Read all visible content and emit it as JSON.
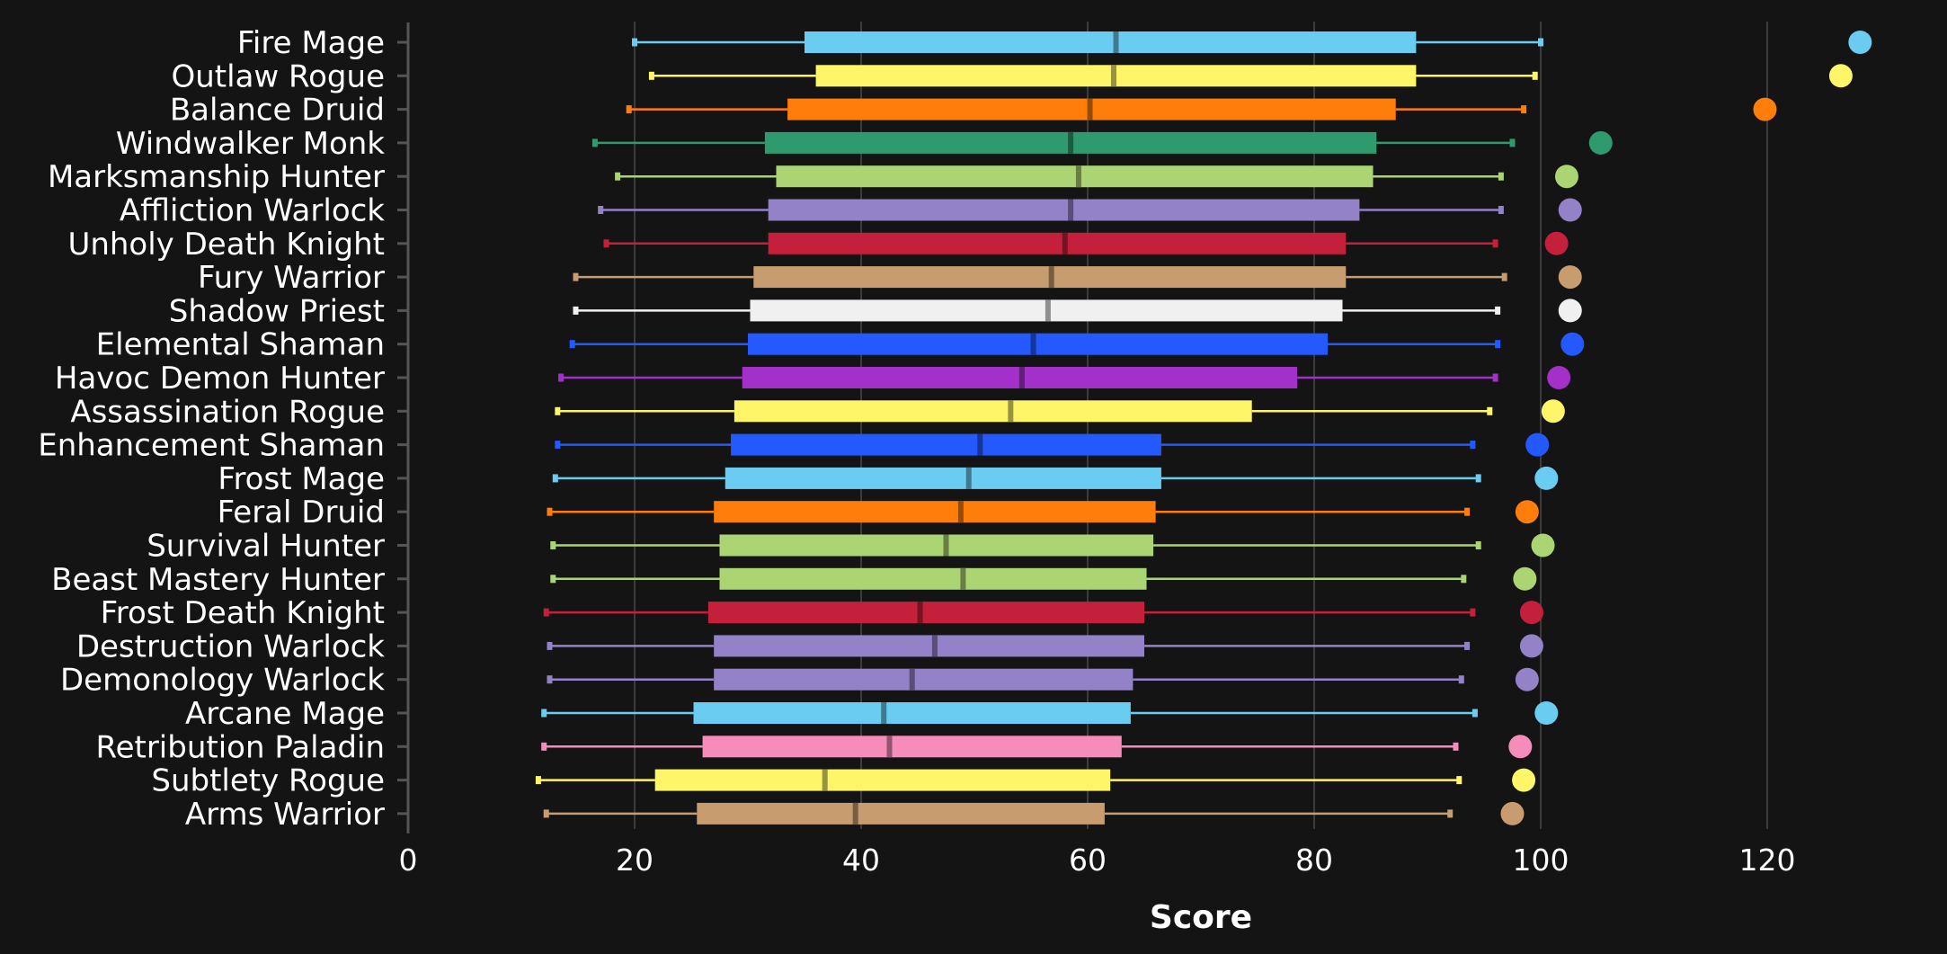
{
  "chart_data": {
    "type": "box",
    "orientation": "horizontal",
    "xlabel": "Score",
    "xlim": [
      0,
      130
    ],
    "xticks": [
      0,
      20,
      40,
      60,
      80,
      100,
      120
    ],
    "grid": true,
    "categories": [
      {
        "name": "Fire Mage",
        "color": "#69ccf0",
        "whisker_min": 20,
        "q1": 35,
        "median": 62.5,
        "q3": 89,
        "whisker_max": 100,
        "outlier": 128.2
      },
      {
        "name": "Outlaw Rogue",
        "color": "#fff569",
        "whisker_min": 21.5,
        "q1": 36,
        "median": 62.3,
        "q3": 89,
        "whisker_max": 99.5,
        "outlier": 126.5
      },
      {
        "name": "Balance Druid",
        "color": "#ff7d0a",
        "whisker_min": 19.5,
        "q1": 33.5,
        "median": 60.2,
        "q3": 87.2,
        "whisker_max": 98.5,
        "outlier": 119.8
      },
      {
        "name": "Windwalker Monk",
        "color": "#2e9a6e",
        "whisker_min": 16.5,
        "q1": 31.5,
        "median": 58.5,
        "q3": 85.5,
        "whisker_max": 97.5,
        "outlier": 105.3
      },
      {
        "name": "Marksmanship Hunter",
        "color": "#abd473",
        "whisker_min": 18.5,
        "q1": 32.5,
        "median": 59.2,
        "q3": 85.2,
        "whisker_max": 96.5,
        "outlier": 102.3
      },
      {
        "name": "Affliction Warlock",
        "color": "#9482c9",
        "whisker_min": 17,
        "q1": 31.8,
        "median": 58.5,
        "q3": 84,
        "whisker_max": 96.5,
        "outlier": 102.6
      },
      {
        "name": "Unholy Death Knight",
        "color": "#c41f3b",
        "whisker_min": 17.5,
        "q1": 31.8,
        "median": 58,
        "q3": 82.8,
        "whisker_max": 96,
        "outlier": 101.4
      },
      {
        "name": "Fury Warrior",
        "color": "#c79c6e",
        "whisker_min": 14.8,
        "q1": 30.5,
        "median": 56.8,
        "q3": 82.8,
        "whisker_max": 96.8,
        "outlier": 102.6
      },
      {
        "name": "Shadow Priest",
        "color": "#f0f0f0",
        "whisker_min": 14.8,
        "q1": 30.2,
        "median": 56.5,
        "q3": 82.5,
        "whisker_max": 96.2,
        "outlier": 102.6
      },
      {
        "name": "Elemental Shaman",
        "color": "#2459ff",
        "whisker_min": 14.5,
        "q1": 30,
        "median": 55.2,
        "q3": 81.2,
        "whisker_max": 96.2,
        "outlier": 102.8
      },
      {
        "name": "Havoc Demon Hunter",
        "color": "#a330c9",
        "whisker_min": 13.5,
        "q1": 29.5,
        "median": 54.2,
        "q3": 78.5,
        "whisker_max": 96,
        "outlier": 101.6
      },
      {
        "name": "Assassination Rogue",
        "color": "#fff569",
        "whisker_min": 13.2,
        "q1": 28.8,
        "median": 53.2,
        "q3": 74.5,
        "whisker_max": 95.5,
        "outlier": 101.1
      },
      {
        "name": "Enhancement Shaman",
        "color": "#2459ff",
        "whisker_min": 13.2,
        "q1": 28.5,
        "median": 50.5,
        "q3": 66.5,
        "whisker_max": 94,
        "outlier": 99.7
      },
      {
        "name": "Frost Mage",
        "color": "#69ccf0",
        "whisker_min": 13,
        "q1": 28,
        "median": 49.5,
        "q3": 66.5,
        "whisker_max": 94.5,
        "outlier": 100.5
      },
      {
        "name": "Feral Druid",
        "color": "#ff7d0a",
        "whisker_min": 12.5,
        "q1": 27,
        "median": 48.8,
        "q3": 66,
        "whisker_max": 93.5,
        "outlier": 98.8
      },
      {
        "name": "Survival Hunter",
        "color": "#abd473",
        "whisker_min": 12.8,
        "q1": 27.5,
        "median": 47.5,
        "q3": 65.8,
        "whisker_max": 94.5,
        "outlier": 100.2
      },
      {
        "name": "Beast Mastery Hunter",
        "color": "#abd473",
        "whisker_min": 12.8,
        "q1": 27.5,
        "median": 49,
        "q3": 65.2,
        "whisker_max": 93.2,
        "outlier": 98.6
      },
      {
        "name": "Frost Death Knight",
        "color": "#c41f3b",
        "whisker_min": 12.2,
        "q1": 26.5,
        "median": 45.2,
        "q3": 65,
        "whisker_max": 94,
        "outlier": 99.2
      },
      {
        "name": "Destruction Warlock",
        "color": "#9482c9",
        "whisker_min": 12.5,
        "q1": 27,
        "median": 46.5,
        "q3": 65,
        "whisker_max": 93.5,
        "outlier": 99.2
      },
      {
        "name": "Demonology Warlock",
        "color": "#9482c9",
        "whisker_min": 12.5,
        "q1": 27,
        "median": 44.5,
        "q3": 64,
        "whisker_max": 93,
        "outlier": 98.8
      },
      {
        "name": "Arcane Mage",
        "color": "#69ccf0",
        "whisker_min": 12,
        "q1": 25.2,
        "median": 42,
        "q3": 63.8,
        "whisker_max": 94.2,
        "outlier": 100.5
      },
      {
        "name": "Retribution Paladin",
        "color": "#f58cba",
        "whisker_min": 12,
        "q1": 26,
        "median": 42.5,
        "q3": 63,
        "whisker_max": 92.5,
        "outlier": 98.2
      },
      {
        "name": "Subtlety Rogue",
        "color": "#fff569",
        "whisker_min": 11.5,
        "q1": 21.8,
        "median": 36.8,
        "q3": 62,
        "whisker_max": 92.8,
        "outlier": 98.5
      },
      {
        "name": "Arms Warrior",
        "color": "#c79c6e",
        "whisker_min": 12.2,
        "q1": 25.5,
        "median": 39.5,
        "q3": 61.5,
        "whisker_max": 92,
        "outlier": 97.5
      }
    ]
  }
}
